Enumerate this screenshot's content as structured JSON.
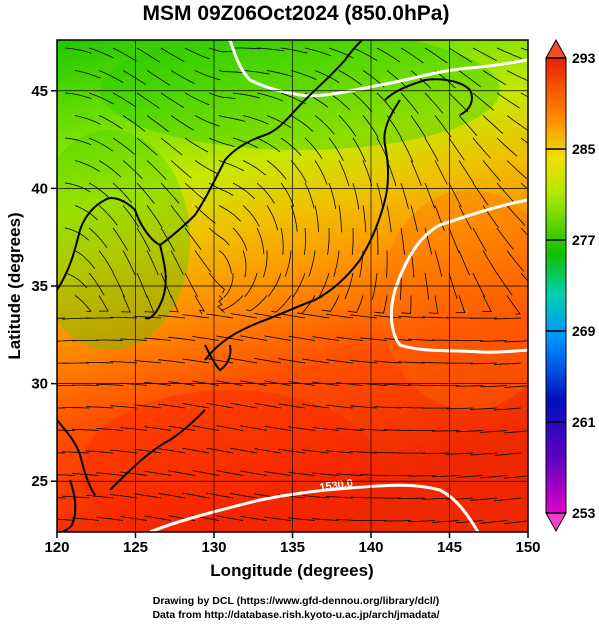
{
  "title": "MSM 09Z06Oct2024 (850.0hPa)",
  "x_axis": {
    "label": "Longitude (degrees)",
    "ticks": [
      "120",
      "125",
      "130",
      "135",
      "140",
      "145",
      "150"
    ],
    "range": [
      120,
      150
    ]
  },
  "y_axis": {
    "label": "Latitude  (degrees)",
    "ticks": [
      "25",
      "30",
      "35",
      "40",
      "45"
    ],
    "range": [
      22.4,
      47.6
    ]
  },
  "colorbar": {
    "ticks": [
      "253",
      "261",
      "269",
      "277",
      "285",
      "293"
    ],
    "range": [
      253,
      293
    ],
    "colors": [
      "#e000d0",
      "#0010c0",
      "#0090ff",
      "#00d0c0",
      "#10c000",
      "#90e000",
      "#f0e000",
      "#ff9000",
      "#ff2000",
      "#e82000"
    ]
  },
  "contour_labels": [
    {
      "text": "1530.0",
      "lon": 137.5,
      "lat": 24.5
    }
  ],
  "credits": {
    "line1": "Drawing by DCL (https://www.gfd-dennou.org/library/dcl/)",
    "line2": "Data from http://database.rish.kyoto-u.ac.jp/arch/jmadata/"
  }
}
